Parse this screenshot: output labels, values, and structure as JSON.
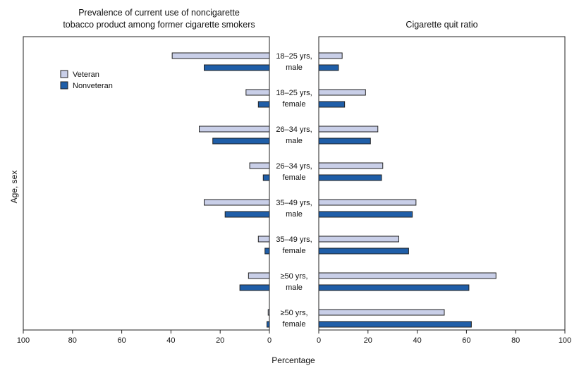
{
  "chart_data": {
    "type": "bar",
    "orientation": "horizontal",
    "categories": [
      [
        "18–25 yrs,",
        "male"
      ],
      [
        "18–25 yrs,",
        "female"
      ],
      [
        "26–34 yrs,",
        "male"
      ],
      [
        "26–34 yrs,",
        "female"
      ],
      [
        "35–49 yrs,",
        "male"
      ],
      [
        "35–49 yrs,",
        "female"
      ],
      [
        "≥50 yrs,",
        "male"
      ],
      [
        "≥50 yrs,",
        "female"
      ]
    ],
    "ylabel": "Age, sex",
    "xlabel": "Percentage",
    "legend": {
      "placement": "top-left",
      "entries": [
        {
          "name": "Veteran",
          "color": "#c9cfe8"
        },
        {
          "name": "Nonveteran",
          "color": "#1f5ea8"
        }
      ]
    },
    "panels": [
      {
        "title": [
          "Prevalence of current use of noncigarette",
          "tobacco product among former cigarette smokers"
        ],
        "direction": "reversed",
        "xlim": [
          0,
          100
        ],
        "ticks": [
          "100",
          "80",
          "60",
          "40",
          "20",
          "0"
        ],
        "series": [
          {
            "name": "Veteran",
            "values": [
              39.5,
              9.5,
              28.5,
              8,
              26.5,
              4.5,
              8.5,
              0.5
            ]
          },
          {
            "name": "Nonveteran",
            "values": [
              26.5,
              4.5,
              23,
              2.5,
              18,
              1.8,
              12,
              1
            ]
          }
        ]
      },
      {
        "title": [
          "Cigarette quit ratio"
        ],
        "direction": "normal",
        "xlim": [
          0,
          100
        ],
        "ticks": [
          "0",
          "20",
          "40",
          "60",
          "80",
          "100"
        ],
        "series": [
          {
            "name": "Veteran",
            "values": [
              9.5,
              19,
              24,
              26,
              39.5,
              32.5,
              72,
              51
            ]
          },
          {
            "name": "Nonveteran",
            "values": [
              8,
              10.5,
              21,
              25.5,
              38,
              36.5,
              61,
              62
            ]
          }
        ]
      }
    ],
    "colors": {
      "veteran": "#c9cfe8",
      "nonveteran": "#1f5ea8",
      "stroke": "#222222"
    }
  }
}
